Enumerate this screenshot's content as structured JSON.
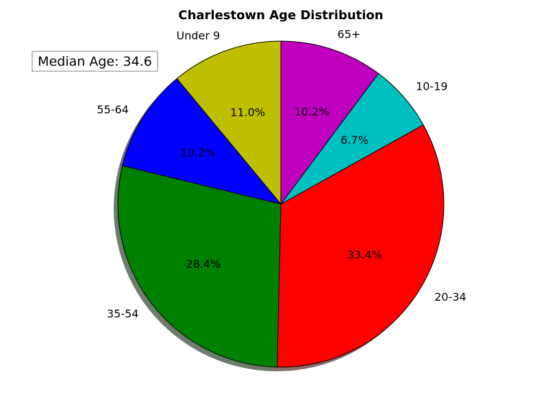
{
  "chart_data": {
    "type": "pie",
    "title": "Charlestown Age Distribution",
    "annotation": "Median Age: 34.6",
    "slices": [
      {
        "label": "Under 9",
        "value": 11.0,
        "pct_label": "11.0%",
        "color": "#bfbf00"
      },
      {
        "label": "55-64",
        "value": 10.2,
        "pct_label": "10.2%",
        "color": "#0000ff"
      },
      {
        "label": "35-54",
        "value": 28.4,
        "pct_label": "28.4%",
        "color": "#008000"
      },
      {
        "label": "20-34",
        "value": 33.4,
        "pct_label": "33.4%",
        "color": "#ff0000"
      },
      {
        "label": "10-19",
        "value": 6.7,
        "pct_label": "6.7%",
        "color": "#00bfbf"
      },
      {
        "label": "65+",
        "value": 10.2,
        "pct_label": "10.2%",
        "color": "#bf00bf"
      }
    ],
    "start_angle_deg": 90,
    "direction": "counterclockwise",
    "shadow": true
  }
}
